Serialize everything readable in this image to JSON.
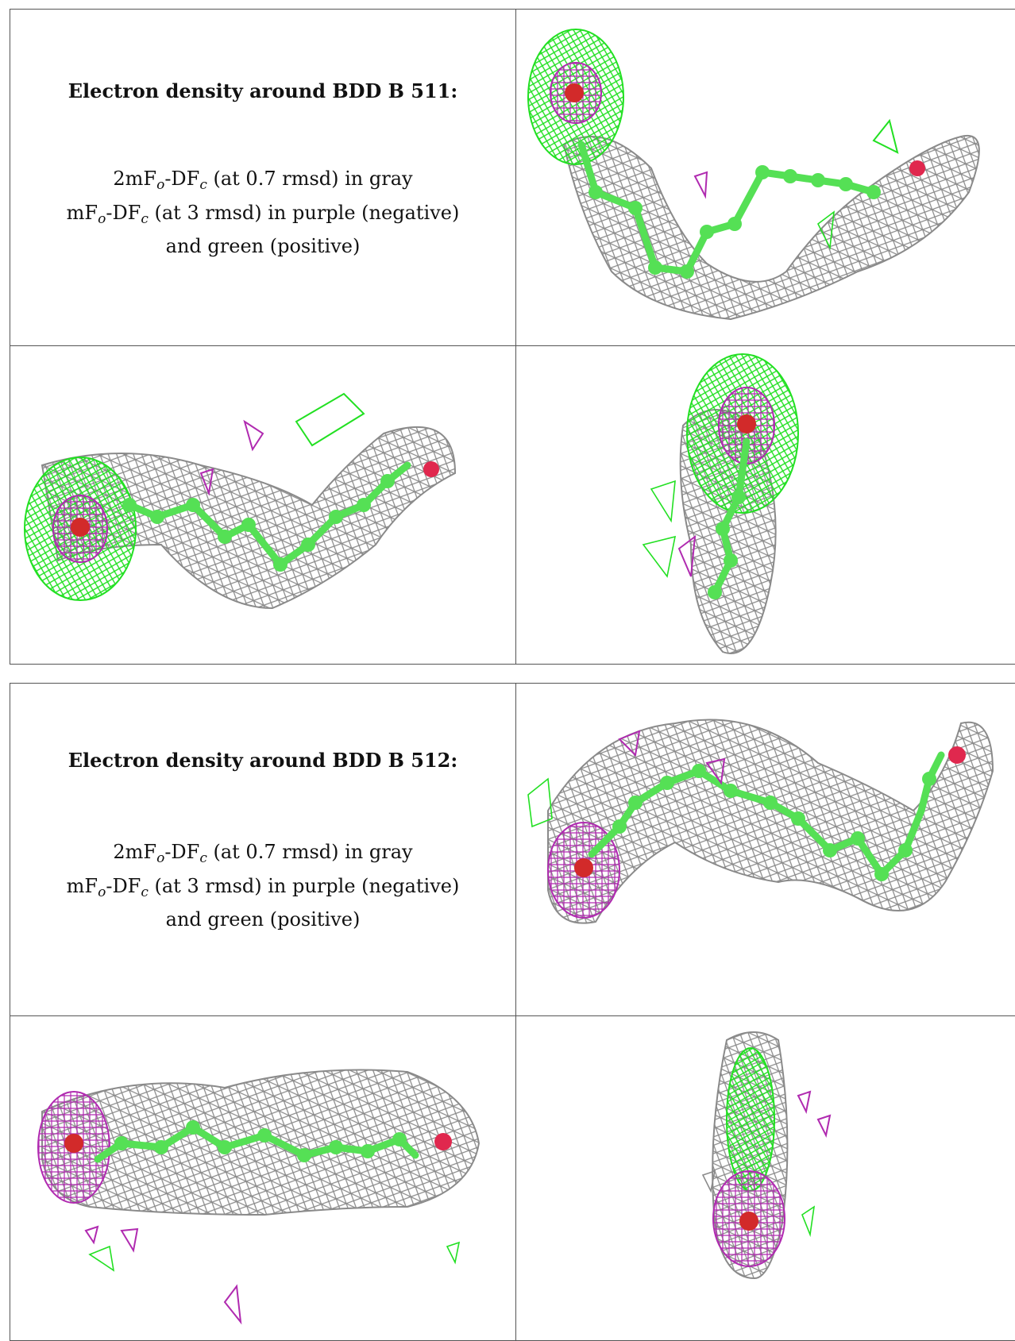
{
  "figures": [
    {
      "id": "BDD B 511",
      "title": "Electron density around BDD B 511:",
      "line1_main": "2mF",
      "line1_sub1": "o",
      "line1_mid": "-DF",
      "line1_sub2": "c",
      "line1_tail": " (at 0.7 rmsd) in gray",
      "line2_main": "mF",
      "line2_sub1": "o",
      "line2_mid": "-DF",
      "line2_sub2": "c",
      "line2_tail": " (at 3 rmsd) in purple (negative)",
      "line3": "and green (positive)"
    },
    {
      "id": "BDD B 512",
      "title": "Electron density around BDD B 512:",
      "line1_main": "2mF",
      "line1_sub1": "o",
      "line1_mid": "-DF",
      "line1_sub2": "c",
      "line1_tail": " (at 0.7 rmsd) in gray",
      "line2_main": "mF",
      "line2_sub1": "o",
      "line2_mid": "-DF",
      "line2_sub2": "c",
      "line2_tail": " (at 3 rmsd) in purple (negative)",
      "line3": "and green (positive)"
    }
  ],
  "colors": {
    "mesh_2fofc": "#8a8a8a",
    "mesh_positive": "#22e022",
    "mesh_negative": "#b02ab0",
    "atom_carbon": "#55e055",
    "atom_oxygen": "#e0284e",
    "atom_oxygen_core": "#d22a2a"
  }
}
